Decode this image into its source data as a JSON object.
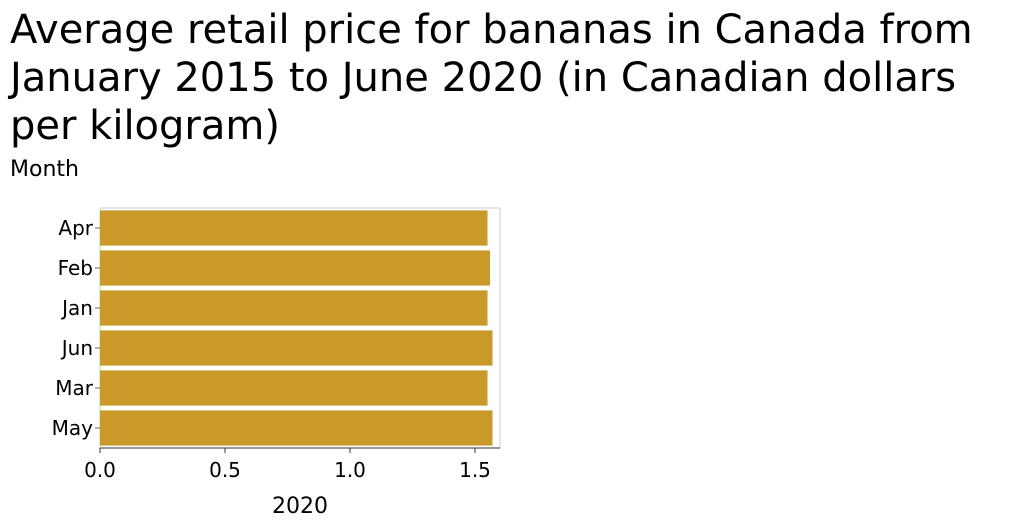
{
  "chart_data": {
    "type": "bar",
    "orientation": "horizontal",
    "title": "Average retail price for bananas in Canada from January 2015 to June 2020 (in Canadian dollars per kilogram)",
    "ylabel": "Month",
    "xlabel": "2020",
    "categories": [
      "Apr",
      "Feb",
      "Jan",
      "Jun",
      "Mar",
      "May"
    ],
    "values": [
      1.55,
      1.56,
      1.55,
      1.57,
      1.55,
      1.57
    ],
    "xlim": [
      0,
      1.6
    ],
    "xticks": [
      "0.0",
      "0.5",
      "1.0",
      "1.5"
    ],
    "bar_color": "#c99a2a",
    "grid": false
  }
}
